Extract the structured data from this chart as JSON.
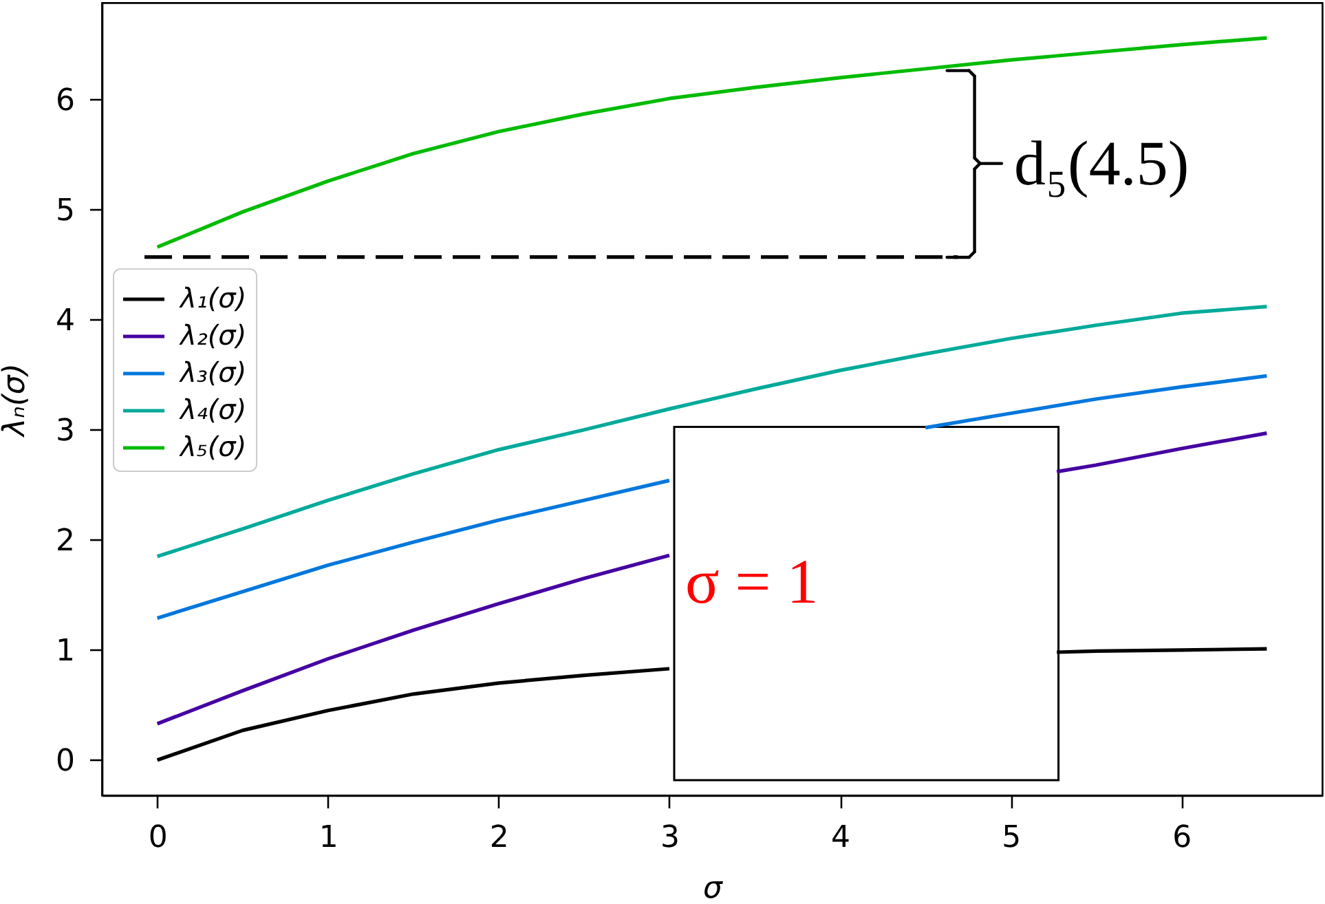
{
  "chart_data": {
    "type": "line",
    "xlabel": "σ",
    "ylabel": "λₙ(σ)",
    "x": [
      0,
      0.5,
      1,
      1.5,
      2,
      2.5,
      3,
      3.5,
      4,
      4.5,
      5,
      5.5,
      6,
      6.5
    ],
    "series": [
      {
        "name": "λ₁(σ)",
        "color": "#000000",
        "x": [
          0,
          0.5,
          1,
          1.5,
          2,
          2.5,
          3,
          3.5,
          5.27,
          5.5,
          6,
          6.5
        ],
        "values": [
          0,
          0.27,
          0.45,
          0.6,
          0.7,
          0.77,
          0.83,
          null,
          0.98,
          0.99,
          1.0,
          1.01
        ]
      },
      {
        "name": "λ₂(σ)",
        "color": "#4400a2",
        "x": [
          0,
          0.5,
          1,
          1.5,
          2,
          2.5,
          3,
          3.5,
          5.27,
          5.5,
          6,
          6.5
        ],
        "values": [
          0.33,
          0.63,
          0.92,
          1.18,
          1.42,
          1.65,
          1.86,
          null,
          2.62,
          2.68,
          2.83,
          2.97
        ]
      },
      {
        "name": "λ₃(σ)",
        "color": "#0077dd",
        "values": [
          1.29,
          1.53,
          1.77,
          1.98,
          2.18,
          2.36,
          2.54,
          null,
          null,
          3.02,
          3.15,
          3.28,
          3.39,
          3.49
        ]
      },
      {
        "name": "λ₄(σ)",
        "color": "#00aa99",
        "values": [
          1.85,
          2.1,
          2.36,
          2.6,
          2.82,
          3.0,
          3.19,
          3.37,
          3.54,
          3.69,
          3.83,
          3.95,
          4.06,
          4.12
        ]
      },
      {
        "name": "λ₅(σ)",
        "color": "#00bb00",
        "values": [
          4.66,
          4.98,
          5.26,
          5.51,
          5.71,
          5.87,
          6.01,
          6.11,
          6.2,
          6.28,
          6.36,
          6.43,
          6.5,
          6.56
        ]
      },
      {
        "color": "#000000",
        "x": [
          -0.075,
          4.69
        ],
        "values": [
          4.57,
          4.57
        ],
        "line_style": "dashed"
      }
    ],
    "annotations": [
      "σ = 1",
      "d₅(4.5)"
    ],
    "xlim": [
      -0.325,
      6.825
    ],
    "ylim": [
      -0.32,
      6.88
    ],
    "xticks": [
      0,
      1,
      2,
      3,
      4,
      5,
      6
    ],
    "yticks": [
      0,
      1,
      2,
      3,
      4,
      5,
      6
    ],
    "legend": "left"
  }
}
